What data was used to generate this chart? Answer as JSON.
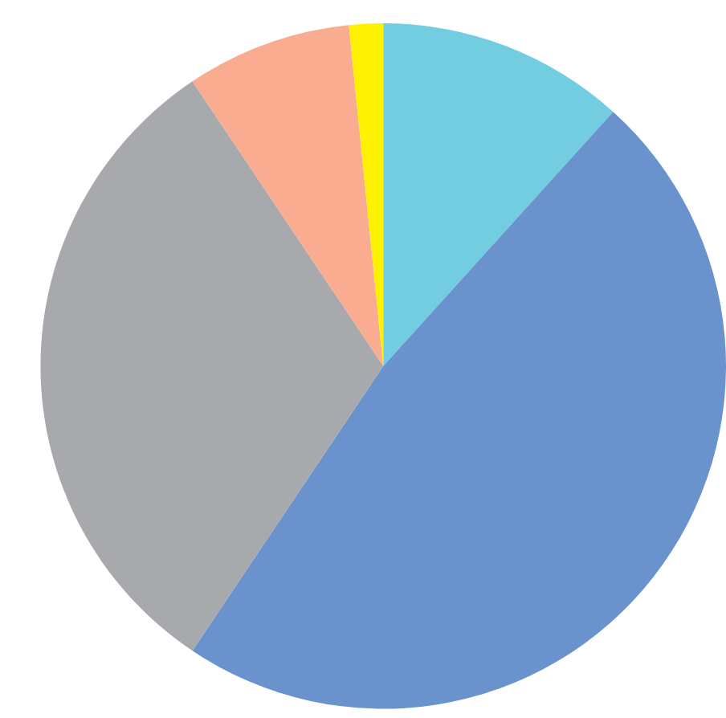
{
  "chart_data": {
    "type": "pie",
    "categories": [
      null,
      null,
      null,
      null,
      null
    ],
    "values": [
      11.7,
      47.7,
      31.2,
      7.8,
      1.6
    ],
    "colors": [
      "#72cde0",
      "#6a93cd",
      "#a7a9ac",
      "#f9ac8f",
      "#fff200"
    ],
    "legend": false
  }
}
